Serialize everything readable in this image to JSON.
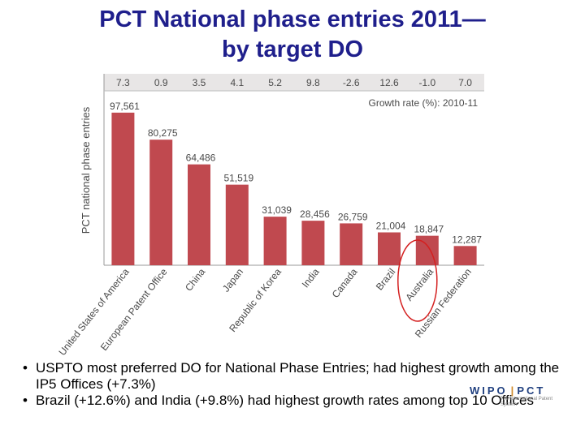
{
  "slide": {
    "title_line1": "PCT National phase entries 2011—",
    "title_line2": "by target DO"
  },
  "chart_data": {
    "type": "bar",
    "ylabel": "PCT national phase entries",
    "growth_label": "Growth rate (%): 2010-11",
    "categories": [
      "United States of America",
      "European Patent Office",
      "China",
      "Japan",
      "Republic of Korea",
      "India",
      "Canada",
      "Brazil",
      "Australia",
      "Russian Federation"
    ],
    "values": [
      97561,
      80275,
      64486,
      51519,
      31039,
      28456,
      26759,
      21004,
      18847,
      12287
    ],
    "value_labels": [
      "97,561",
      "80,275",
      "64,486",
      "51,519",
      "31,039",
      "28,456",
      "26,759",
      "21,004",
      "18,847",
      "12,287"
    ],
    "growth_rates": [
      "7.3",
      "0.9",
      "3.5",
      "4.1",
      "5.2",
      "9.8",
      "-2.6",
      "12.6",
      "-1.0",
      "7.0"
    ],
    "ylim": [
      0,
      100000
    ],
    "grid": false,
    "highlighted_category": "Australia",
    "colors": {
      "bar": "#c0494f",
      "header_band": "#e8e6e6",
      "highlight_ellipse": "#d42020"
    }
  },
  "bullets": [
    "USPTO most preferred DO for National Phase Entries; had highest growth among the IP5 Offices (+7.3%)",
    "Brazil (+12.6%) and India (+9.8%) had highest growth rates among top 10 Offices"
  ],
  "logo": {
    "left": "WIPO",
    "sep": "|",
    "right": "PCT",
    "sub": "The International Patent System"
  }
}
